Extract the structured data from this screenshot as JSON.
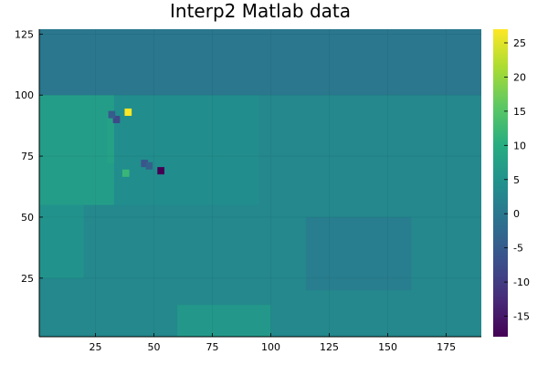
{
  "chart_data": {
    "type": "heatmap",
    "title": "Interp2 Matlab data",
    "xlabel": "",
    "ylabel": "",
    "xlim": [
      1,
      190
    ],
    "ylim": [
      1,
      127
    ],
    "x_ticks": [
      25,
      50,
      75,
      100,
      125,
      150,
      175
    ],
    "y_ticks": [
      25,
      50,
      75,
      100,
      125
    ],
    "colorbar": {
      "colormap": "viridis",
      "range": [
        -18,
        27
      ],
      "ticks": [
        -15,
        -10,
        -5,
        0,
        5,
        10,
        15,
        20,
        25
      ]
    },
    "grid": true,
    "background_value": 3,
    "regions": [
      {
        "x0": 1,
        "x1": 190,
        "y0": 100,
        "y1": 127,
        "value": 0
      },
      {
        "x0": 1,
        "x1": 33,
        "y0": 55,
        "y1": 100,
        "value": 7
      },
      {
        "x0": 1,
        "x1": 20,
        "y0": 25,
        "y1": 55,
        "value": 5
      },
      {
        "x0": 30,
        "x1": 37,
        "y0": 72,
        "y1": 93,
        "value": 8
      },
      {
        "x0": 33,
        "x1": 95,
        "y0": 55,
        "y1": 100,
        "value": 4
      },
      {
        "x0": 95,
        "x1": 190,
        "y0": 60,
        "y1": 100,
        "value": 3
      },
      {
        "x0": 115,
        "x1": 160,
        "y0": 20,
        "y1": 50,
        "value": 1
      },
      {
        "x0": 60,
        "x1": 100,
        "y0": 1,
        "y1": 14,
        "value": 6
      }
    ],
    "spots": [
      {
        "x": 39,
        "y": 93,
        "value": 27
      },
      {
        "x": 53,
        "y": 69,
        "value": -18
      },
      {
        "x": 38,
        "y": 68,
        "value": 12
      },
      {
        "x": 34,
        "y": 90,
        "value": -8
      },
      {
        "x": 32,
        "y": 92,
        "value": -5
      },
      {
        "x": 46,
        "y": 72,
        "value": -6
      },
      {
        "x": 48,
        "y": 71,
        "value": -4
      }
    ]
  }
}
